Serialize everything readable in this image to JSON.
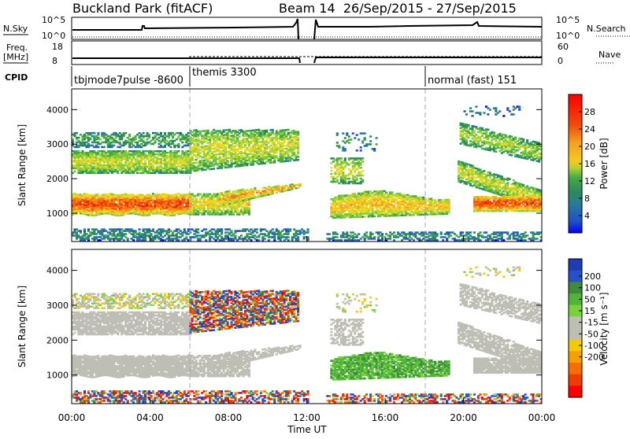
{
  "header": {
    "station": "Buckland Park (fitACF)",
    "beam_info": "Beam 14  26/Sep/2015 - 27/Sep/2015"
  },
  "top_panels": {
    "nsky": {
      "left_label": "N.Sky",
      "left_ticks": [
        "10^5",
        "10^0"
      ],
      "right_label": "N.Search",
      "right_ticks": [
        "10^5",
        "10^0"
      ]
    },
    "freq": {
      "left_label_1": "Freq.",
      "left_label_2": "[MHz]",
      "left_ticks": [
        "18",
        "8"
      ],
      "right_label": "Nave",
      "right_ticks": [
        "60",
        "0"
      ]
    },
    "cpid": {
      "label": "CPID",
      "modes": [
        {
          "name": "tbjmode7pulse -8600",
          "start_h": 0
        },
        {
          "name": "themis 3300",
          "start_h": 6
        },
        {
          "name": "normal (fast) 151",
          "start_h": 18
        }
      ]
    }
  },
  "chart_data": [
    {
      "type": "heatmap",
      "name": "power",
      "ylabel": "Slant Range [km]",
      "xlabel": "",
      "x_range_hours": [
        0,
        24
      ],
      "y_range_km": [
        180,
        4600
      ],
      "yticks": [
        "1000",
        "2000",
        "3000",
        "4000"
      ],
      "yticks_values": [
        1000,
        2000,
        3000,
        4000
      ],
      "colorbar": {
        "label": "Power [dB]",
        "range": [
          0,
          32
        ],
        "tick_labels": [
          "4",
          "8",
          "12",
          "16",
          "20",
          "24",
          "28"
        ],
        "tick_values": [
          4,
          8,
          12,
          16,
          20,
          24,
          28
        ],
        "colors": [
          "#0000ff",
          "#1e50c8",
          "#2878a0",
          "#2e8b57",
          "#46aa46",
          "#78c83c",
          "#b4d232",
          "#e6dc28",
          "#f5c820",
          "#f5a01e",
          "#f57814",
          "#f04b0a",
          "#eb1e00",
          "#ff0000"
        ]
      }
    },
    {
      "type": "heatmap",
      "name": "velocity",
      "ylabel": "Slant Range [km]",
      "xlabel": "Time UT",
      "x_range_hours": [
        0,
        24
      ],
      "y_range_km": [
        180,
        4600
      ],
      "xticks": [
        "00:00",
        "04:00",
        "08:00",
        "12:00",
        "16:00",
        "20:00",
        "00:00"
      ],
      "xticks_hours": [
        0,
        4,
        8,
        12,
        16,
        20,
        24
      ],
      "yticks": [
        "1000",
        "2000",
        "3000",
        "4000"
      ],
      "yticks_values": [
        1000,
        2000,
        3000,
        4000
      ],
      "colorbar": {
        "label": "Velocity [m s⁻¹]",
        "range": [
          -250,
          250
        ],
        "tick_labels": [
          "200",
          "100",
          "50",
          "15",
          "-15",
          "-50",
          "-100",
          "-200"
        ],
        "colors": [
          "#1e3cb4",
          "#2850c8",
          "#3c8c3c",
          "#50b43c",
          "#78d23c",
          "#bebeb4",
          "#bebeb4",
          "#f5c80a",
          "#f5a000",
          "#f56e00",
          "#f03c00",
          "#ff0000"
        ]
      }
    }
  ]
}
